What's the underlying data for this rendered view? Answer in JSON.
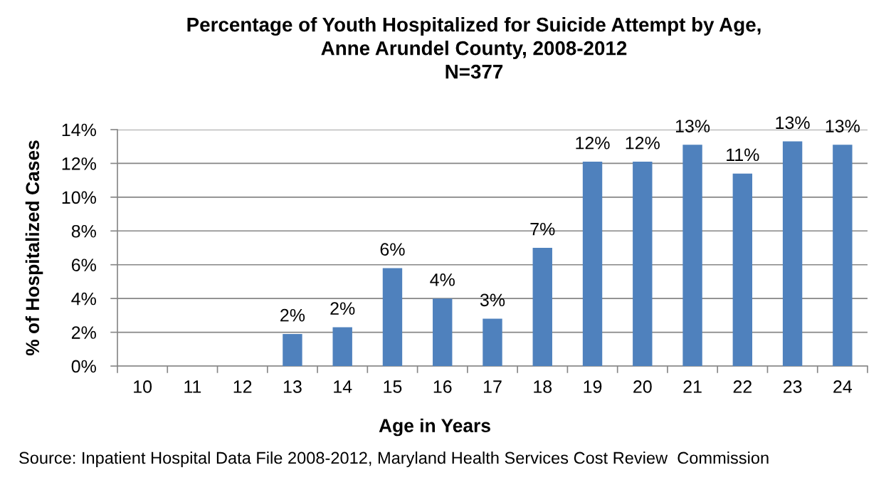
{
  "chart_data": {
    "type": "bar",
    "title": "Percentage of Youth Hospitalized for Suicide Attempt by Age,\nAnne Arundel County, 2008-2012\nN=377",
    "xlabel": "Age in Years",
    "ylabel": "% of Hospitalized Cases",
    "annotations": [
      "Source: Inpatient Hospital Data File 2008-2012, Maryland Health Services Cost Review  Commission"
    ],
    "categories": [
      "10",
      "11",
      "12",
      "13",
      "14",
      "15",
      "16",
      "17",
      "18",
      "19",
      "20",
      "21",
      "22",
      "23",
      "24"
    ],
    "series": [
      {
        "color": "#4f81bd",
        "values": [
          null,
          null,
          null,
          1.9,
          2.3,
          5.8,
          4.0,
          2.8,
          7.0,
          12.1,
          12.1,
          13.1,
          11.4,
          13.3,
          13.1
        ],
        "value_labels": [
          null,
          null,
          null,
          "2%",
          "2%",
          "6%",
          "4%",
          "3%",
          "7%",
          "12%",
          "12%",
          "13%",
          "11%",
          "13%",
          "13%"
        ]
      }
    ],
    "ylim": [
      0,
      14
    ],
    "yticks": [
      {
        "value": 0,
        "label": "0%"
      },
      {
        "value": 2,
        "label": "2%"
      },
      {
        "value": 4,
        "label": "4%"
      },
      {
        "value": 6,
        "label": "6%"
      },
      {
        "value": 8,
        "label": "8%"
      },
      {
        "value": 10,
        "label": "10%"
      },
      {
        "value": 12,
        "label": "12%"
      },
      {
        "value": 14,
        "label": "14%"
      }
    ],
    "grid": "y"
  }
}
